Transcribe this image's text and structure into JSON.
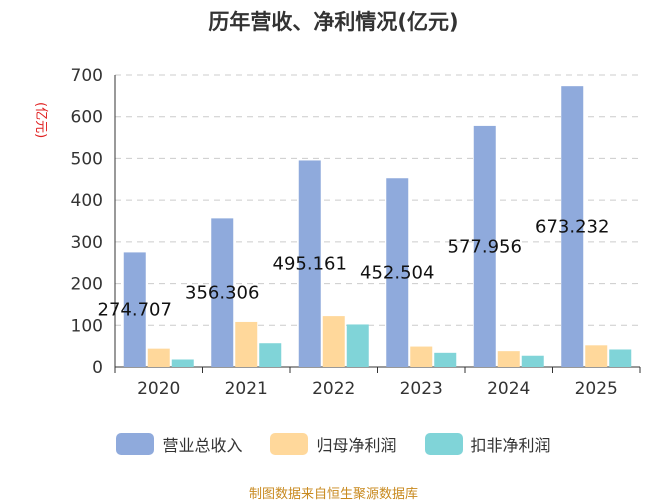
{
  "chart_data": {
    "type": "bar",
    "title": "历年营收、净利情况(亿元)",
    "y_unit": "(亿元)",
    "categories": [
      "2020",
      "2021",
      "2022",
      "2023",
      "2024",
      "2025"
    ],
    "series": [
      {
        "name": "营业总收入",
        "color": "#8faadc",
        "values": [
          274.707,
          356.306,
          495.161,
          452.504,
          577.956,
          673.232
        ],
        "labels": [
          "274.707",
          "356.306",
          "495.161",
          "452.504",
          "577.956",
          "673.232"
        ]
      },
      {
        "name": "归母净利润",
        "color": "#ffd89b",
        "values": [
          44,
          108,
          122,
          49,
          38,
          52
        ]
      },
      {
        "name": "扣非净利润",
        "color": "#80d4d8",
        "values": [
          18,
          57,
          102,
          34,
          27,
          42
        ]
      }
    ],
    "ylim": [
      0,
      700
    ],
    "yticks": [
      "0",
      "100",
      "200",
      "300",
      "400",
      "500",
      "600",
      "700"
    ],
    "grid": true,
    "legend_position": "bottom"
  },
  "source_text": "制图数据来自恒生聚源数据库"
}
